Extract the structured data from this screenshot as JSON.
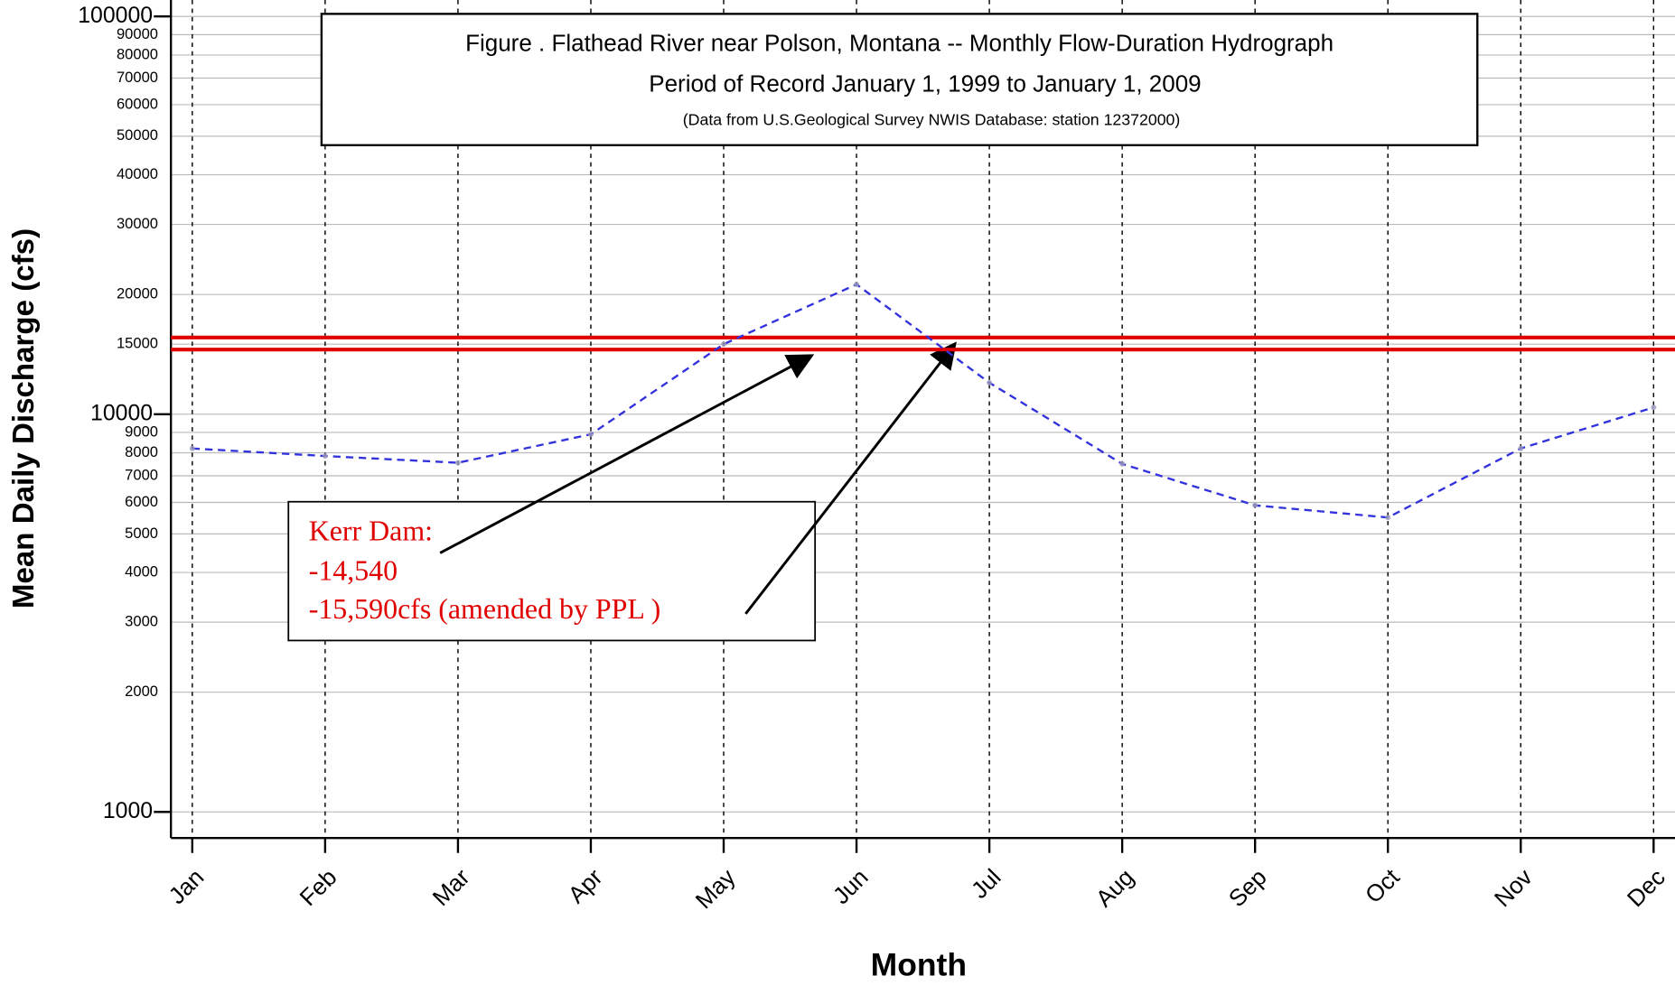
{
  "chart_data": {
    "type": "line",
    "title": "Figure   . Flathead River near Polson, Montana -- Monthly Flow-Duration Hydrograph",
    "subtitle": "Period of Record January 1, 1999 to January 1, 2009",
    "source": "(Data from U.S.Geological Survey NWIS Database: station 12372000)",
    "x_label": "Month",
    "y_label": "Mean Daily Discharge (cfs)",
    "categories": [
      "Jan",
      "Feb",
      "Mar",
      "Apr",
      "May",
      "Jun",
      "Jul",
      "Aug",
      "Sep",
      "Oct",
      "Nov",
      "Dec"
    ],
    "series": [
      {
        "name": "Mean Daily Discharge",
        "color": "#3333dd",
        "values": [
          8200,
          7850,
          7550,
          8900,
          15000,
          21200,
          12000,
          7500,
          5900,
          5500,
          8200,
          10400
        ]
      }
    ],
    "log_y": true,
    "ylim": [
      860,
      110000
    ],
    "yticks": [
      1000,
      2000,
      3000,
      4000,
      5000,
      6000,
      7000,
      8000,
      9000,
      10000,
      15000,
      20000,
      30000,
      40000,
      50000,
      60000,
      70000,
      80000,
      90000,
      100000
    ],
    "grid": true,
    "reference_lines": [
      {
        "value": 14540,
        "color": "#e00000"
      },
      {
        "value": 15590,
        "color": "#e00000"
      }
    ],
    "annotation": {
      "lines": [
        "Kerr Dam:",
        "-14,540",
        "-15,590cfs (amended by PPL )"
      ]
    }
  }
}
